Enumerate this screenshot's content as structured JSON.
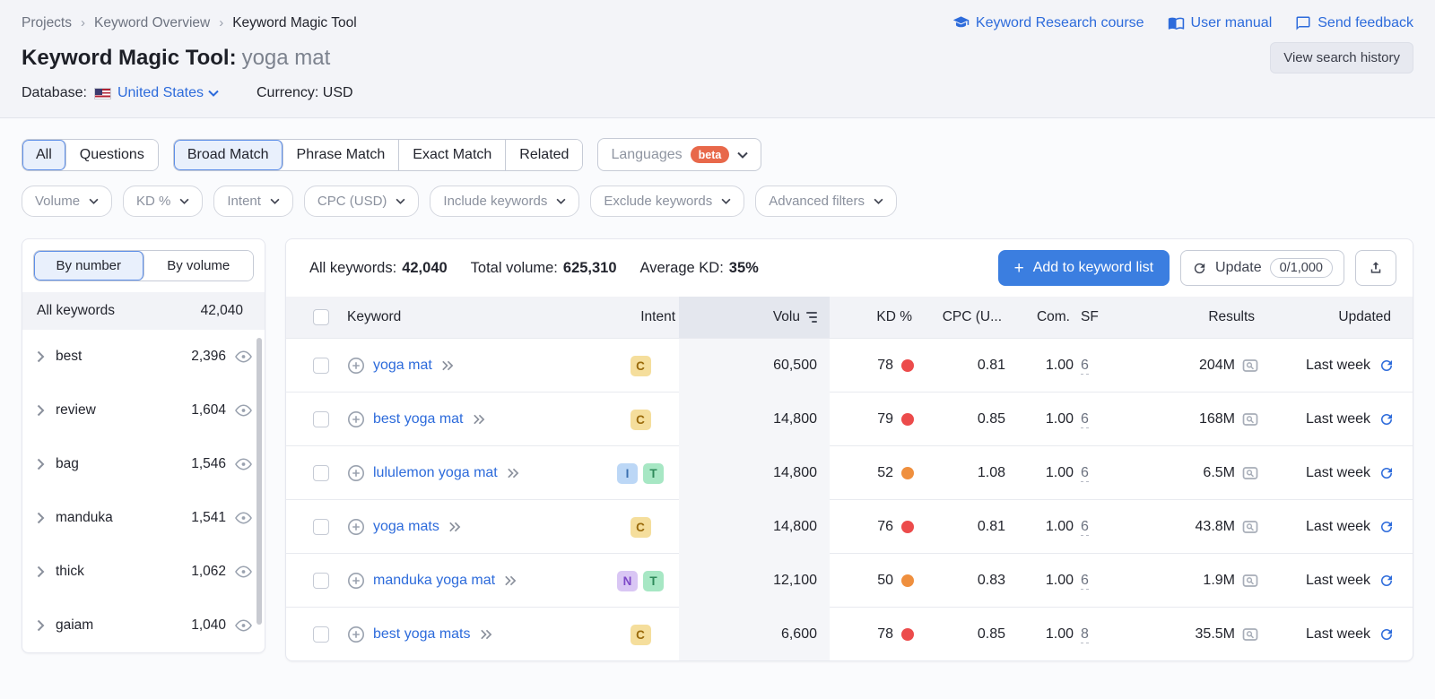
{
  "breadcrumb": [
    "Projects",
    "Keyword Overview",
    "Keyword Magic Tool"
  ],
  "top_links": [
    {
      "label": "Keyword Research course",
      "icon": "graduation-cap"
    },
    {
      "label": "User manual",
      "icon": "book"
    },
    {
      "label": "Send feedback",
      "icon": "speech-bubble"
    }
  ],
  "header": {
    "title": "Keyword Magic Tool:",
    "query": "yoga mat",
    "view_history_button": "View search history",
    "database_label": "Database:",
    "database_value": "United States",
    "currency_label": "Currency: USD"
  },
  "tabs": {
    "group1": [
      {
        "label": "All",
        "selected": true
      },
      {
        "label": "Questions",
        "selected": false
      }
    ],
    "group2": [
      {
        "label": "Broad Match",
        "selected": true
      },
      {
        "label": "Phrase Match",
        "selected": false
      },
      {
        "label": "Exact Match",
        "selected": false
      },
      {
        "label": "Related",
        "selected": false
      }
    ],
    "languages": {
      "label": "Languages",
      "badge": "beta"
    }
  },
  "filters": [
    "Volume",
    "KD %",
    "Intent",
    "CPC (USD)",
    "Include keywords",
    "Exclude keywords",
    "Advanced filters"
  ],
  "sidebar": {
    "toggle": [
      {
        "label": "By number",
        "selected": true
      },
      {
        "label": "By volume",
        "selected": false
      }
    ],
    "all_keywords": {
      "label": "All keywords",
      "count": "42,040"
    },
    "groups": [
      {
        "label": "best",
        "count": "2,396"
      },
      {
        "label": "review",
        "count": "1,604"
      },
      {
        "label": "bag",
        "count": "1,546"
      },
      {
        "label": "manduka",
        "count": "1,541"
      },
      {
        "label": "thick",
        "count": "1,062"
      },
      {
        "label": "gaiam",
        "count": "1,040"
      }
    ]
  },
  "toolbar": {
    "stats": [
      {
        "label": "All keywords:",
        "value": "42,040"
      },
      {
        "label": "Total volume:",
        "value": "625,310"
      },
      {
        "label": "Average KD:",
        "value": "35%"
      }
    ],
    "add_button": "Add to keyword list",
    "update_button": "Update",
    "update_counter": "0/1,000"
  },
  "table": {
    "headers": {
      "keyword": "Keyword",
      "intent": "Intent",
      "volume": "Volu",
      "kd": "KD %",
      "cpc": "CPC (U...",
      "com": "Com.",
      "sf": "SF",
      "results": "Results",
      "updated": "Updated"
    },
    "rows": [
      {
        "keyword": "yoga mat",
        "intents": [
          {
            "label": "C",
            "type": "commercial"
          }
        ],
        "volume": "60,500",
        "kd": "78",
        "kd_level": "hard",
        "cpc": "0.81",
        "com": "1.00",
        "sf": "6",
        "results": "204M",
        "updated": "Last week"
      },
      {
        "keyword": "best yoga mat",
        "intents": [
          {
            "label": "C",
            "type": "commercial"
          }
        ],
        "volume": "14,800",
        "kd": "79",
        "kd_level": "hard",
        "cpc": "0.85",
        "com": "1.00",
        "sf": "6",
        "results": "168M",
        "updated": "Last week"
      },
      {
        "keyword": "lululemon yoga mat",
        "intents": [
          {
            "label": "I",
            "type": "informational"
          },
          {
            "label": "T",
            "type": "transactional"
          }
        ],
        "volume": "14,800",
        "kd": "52",
        "kd_level": "difficult",
        "cpc": "1.08",
        "com": "1.00",
        "sf": "6",
        "results": "6.5M",
        "updated": "Last week"
      },
      {
        "keyword": "yoga mats",
        "intents": [
          {
            "label": "C",
            "type": "commercial"
          }
        ],
        "volume": "14,800",
        "kd": "76",
        "kd_level": "hard",
        "cpc": "0.81",
        "com": "1.00",
        "sf": "6",
        "results": "43.8M",
        "updated": "Last week"
      },
      {
        "keyword": "manduka yoga mat",
        "intents": [
          {
            "label": "N",
            "type": "navigational"
          },
          {
            "label": "T",
            "type": "transactional"
          }
        ],
        "volume": "12,100",
        "kd": "50",
        "kd_level": "difficult",
        "cpc": "0.83",
        "com": "1.00",
        "sf": "6",
        "results": "1.9M",
        "updated": "Last week"
      },
      {
        "keyword": "best yoga mats",
        "intents": [
          {
            "label": "C",
            "type": "commercial"
          }
        ],
        "volume": "6,600",
        "kd": "78",
        "kd_level": "hard",
        "cpc": "0.85",
        "com": "1.00",
        "sf": "8",
        "results": "35.5M",
        "updated": "Last week"
      }
    ]
  },
  "colors": {
    "accent_blue": "#2D6BDB",
    "button_blue": "#3B7EE0",
    "beta_orange": "#E8684A",
    "kd_hard": "#EC4B4B",
    "kd_difficult": "#EF8F3E",
    "intent_commercial_bg": "#F5DE9C",
    "intent_commercial_text": "#9A6A0B",
    "intent_informational_bg": "#BCD7F6",
    "intent_informational_text": "#3A6FB0",
    "intent_transactional_bg": "#A7E7C4",
    "intent_transactional_text": "#2E8A5A",
    "intent_navigational_bg": "#D9C6F4",
    "intent_navigational_text": "#7E49C8"
  }
}
